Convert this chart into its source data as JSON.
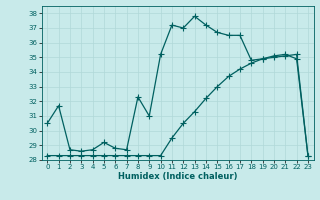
{
  "xlabel": "Humidex (Indice chaleur)",
  "ylabel": "",
  "background_color": "#c8eaea",
  "grid_color": "#b0d8d8",
  "line_color": "#006060",
  "xlim": [
    -0.5,
    23.5
  ],
  "ylim": [
    28,
    38.5
  ],
  "yticks": [
    28,
    29,
    30,
    31,
    32,
    33,
    34,
    35,
    36,
    37,
    38
  ],
  "xticks": [
    0,
    1,
    2,
    3,
    4,
    5,
    6,
    7,
    8,
    9,
    10,
    11,
    12,
    13,
    14,
    15,
    16,
    17,
    18,
    19,
    20,
    21,
    22,
    23
  ],
  "series1_x": [
    0,
    1,
    2,
    3,
    4,
    5,
    6,
    7,
    8,
    9,
    10,
    11,
    12,
    13,
    14,
    15,
    16,
    17,
    18,
    19,
    20,
    21,
    22,
    23
  ],
  "series1_y": [
    30.5,
    31.7,
    28.7,
    28.6,
    28.7,
    29.2,
    28.8,
    28.7,
    32.3,
    31.0,
    35.2,
    37.2,
    37.0,
    37.8,
    37.2,
    36.7,
    36.5,
    36.5,
    34.8,
    34.9,
    35.1,
    35.2,
    34.9,
    28.3
  ],
  "series2_x": [
    0,
    1,
    2,
    3,
    4,
    5,
    6,
    7,
    8,
    9,
    10,
    11,
    12,
    13,
    14,
    15,
    16,
    17,
    18,
    19,
    20,
    21,
    22,
    23
  ],
  "series2_y": [
    28.3,
    28.3,
    28.3,
    28.3,
    28.3,
    28.3,
    28.3,
    28.3,
    28.3,
    28.3,
    28.3,
    29.5,
    30.5,
    31.3,
    32.2,
    33.0,
    33.7,
    34.2,
    34.6,
    34.9,
    35.0,
    35.1,
    35.2,
    28.3
  ],
  "marker_size": 2.0,
  "line_width": 0.9,
  "tick_fontsize": 5.0,
  "xlabel_fontsize": 6.0
}
